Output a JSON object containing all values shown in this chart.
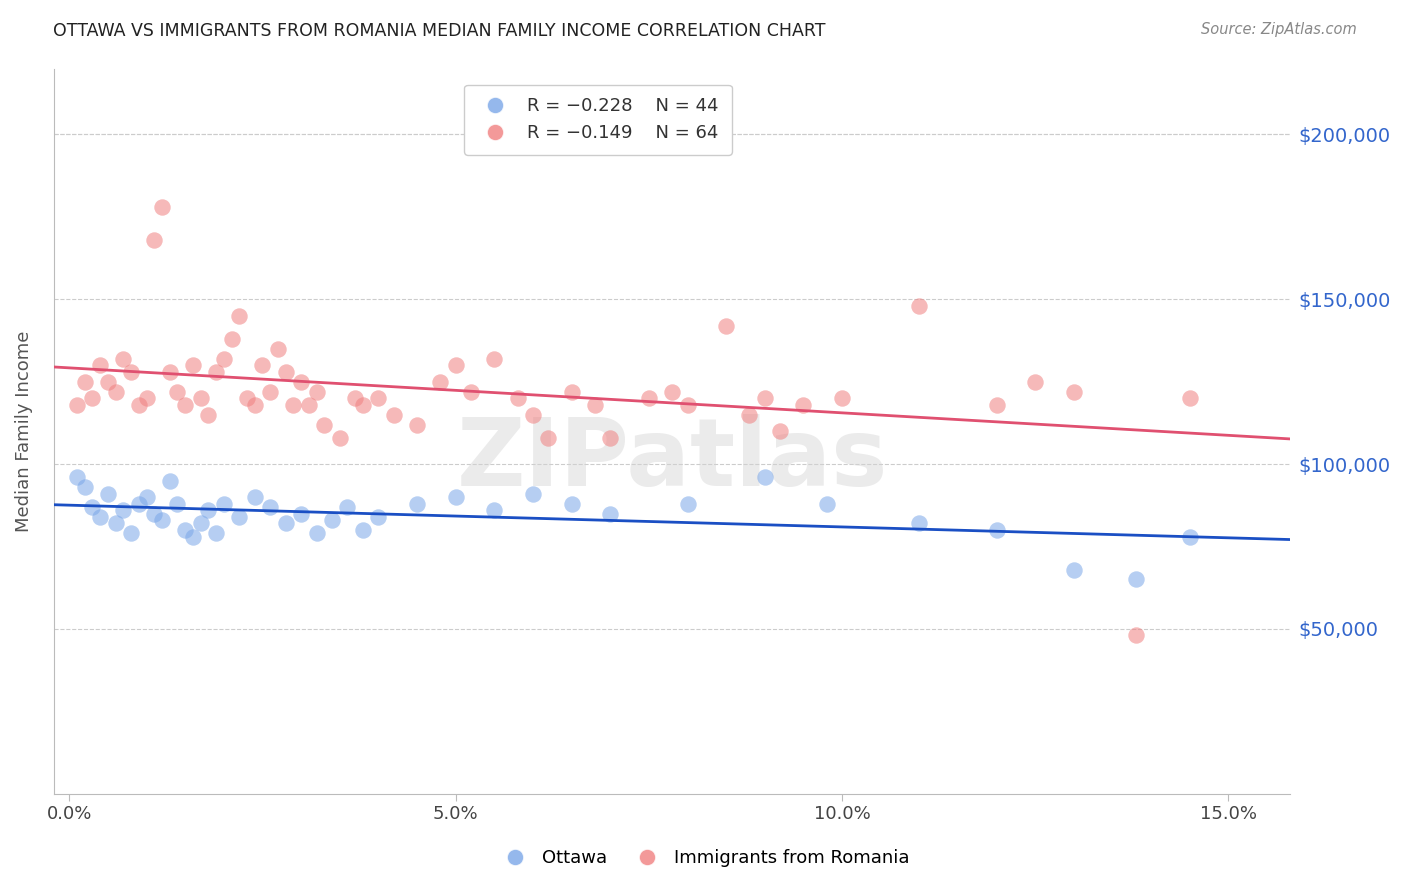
{
  "title": "OTTAWA VS IMMIGRANTS FROM ROMANIA MEDIAN FAMILY INCOME CORRELATION CHART",
  "source": "Source: ZipAtlas.com",
  "ylabel": "Median Family Income",
  "xlabel_ticks": [
    "0.0%",
    "5.0%",
    "10.0%",
    "15.0%"
  ],
  "xlabel_vals": [
    0.0,
    0.05,
    0.1,
    0.15
  ],
  "ytick_labels": [
    "$50,000",
    "$100,000",
    "$150,000",
    "$200,000"
  ],
  "ytick_vals": [
    50000,
    100000,
    150000,
    200000
  ],
  "ylim": [
    0,
    220000
  ],
  "xlim": [
    -0.002,
    0.158
  ],
  "legend_ottawa_R": "R = -0.228",
  "legend_ottawa_N": "N = 44",
  "legend_romania_R": "R = -0.149",
  "legend_romania_N": "N = 64",
  "ottawa_color": "#7BA7E8",
  "romania_color": "#F08080",
  "ottawa_line_color": "#1A4FC4",
  "romania_line_color": "#E05070",
  "watermark": "ZIPatlas",
  "ottawa_x": [
    0.001,
    0.002,
    0.003,
    0.004,
    0.005,
    0.006,
    0.007,
    0.008,
    0.009,
    0.01,
    0.011,
    0.012,
    0.013,
    0.014,
    0.015,
    0.016,
    0.017,
    0.018,
    0.019,
    0.02,
    0.022,
    0.024,
    0.026,
    0.028,
    0.03,
    0.032,
    0.034,
    0.036,
    0.038,
    0.04,
    0.045,
    0.05,
    0.055,
    0.06,
    0.065,
    0.07,
    0.08,
    0.09,
    0.098,
    0.11,
    0.12,
    0.13,
    0.138,
    0.145
  ],
  "ottawa_y": [
    96000,
    93000,
    87000,
    84000,
    91000,
    82000,
    86000,
    79000,
    88000,
    90000,
    85000,
    83000,
    95000,
    88000,
    80000,
    78000,
    82000,
    86000,
    79000,
    88000,
    84000,
    90000,
    87000,
    82000,
    85000,
    79000,
    83000,
    87000,
    80000,
    84000,
    88000,
    90000,
    86000,
    91000,
    88000,
    85000,
    88000,
    96000,
    88000,
    82000,
    80000,
    68000,
    65000,
    78000
  ],
  "romania_x": [
    0.001,
    0.002,
    0.003,
    0.004,
    0.005,
    0.006,
    0.007,
    0.008,
    0.009,
    0.01,
    0.011,
    0.012,
    0.013,
    0.014,
    0.015,
    0.016,
    0.017,
    0.018,
    0.019,
    0.02,
    0.021,
    0.022,
    0.023,
    0.024,
    0.025,
    0.026,
    0.027,
    0.028,
    0.029,
    0.03,
    0.031,
    0.032,
    0.033,
    0.035,
    0.037,
    0.038,
    0.04,
    0.042,
    0.045,
    0.048,
    0.05,
    0.052,
    0.055,
    0.058,
    0.06,
    0.062,
    0.065,
    0.068,
    0.07,
    0.075,
    0.078,
    0.08,
    0.085,
    0.088,
    0.09,
    0.092,
    0.095,
    0.1,
    0.11,
    0.12,
    0.125,
    0.13,
    0.138,
    0.145
  ],
  "romania_y": [
    118000,
    125000,
    120000,
    130000,
    125000,
    122000,
    132000,
    128000,
    118000,
    120000,
    168000,
    178000,
    128000,
    122000,
    118000,
    130000,
    120000,
    115000,
    128000,
    132000,
    138000,
    145000,
    120000,
    118000,
    130000,
    122000,
    135000,
    128000,
    118000,
    125000,
    118000,
    122000,
    112000,
    108000,
    120000,
    118000,
    120000,
    115000,
    112000,
    125000,
    130000,
    122000,
    132000,
    120000,
    115000,
    108000,
    122000,
    118000,
    108000,
    120000,
    122000,
    118000,
    142000,
    115000,
    120000,
    110000,
    118000,
    120000,
    148000,
    118000,
    125000,
    122000,
    48000,
    120000
  ],
  "background_color": "#FFFFFF",
  "grid_color": "#CCCCCC"
}
